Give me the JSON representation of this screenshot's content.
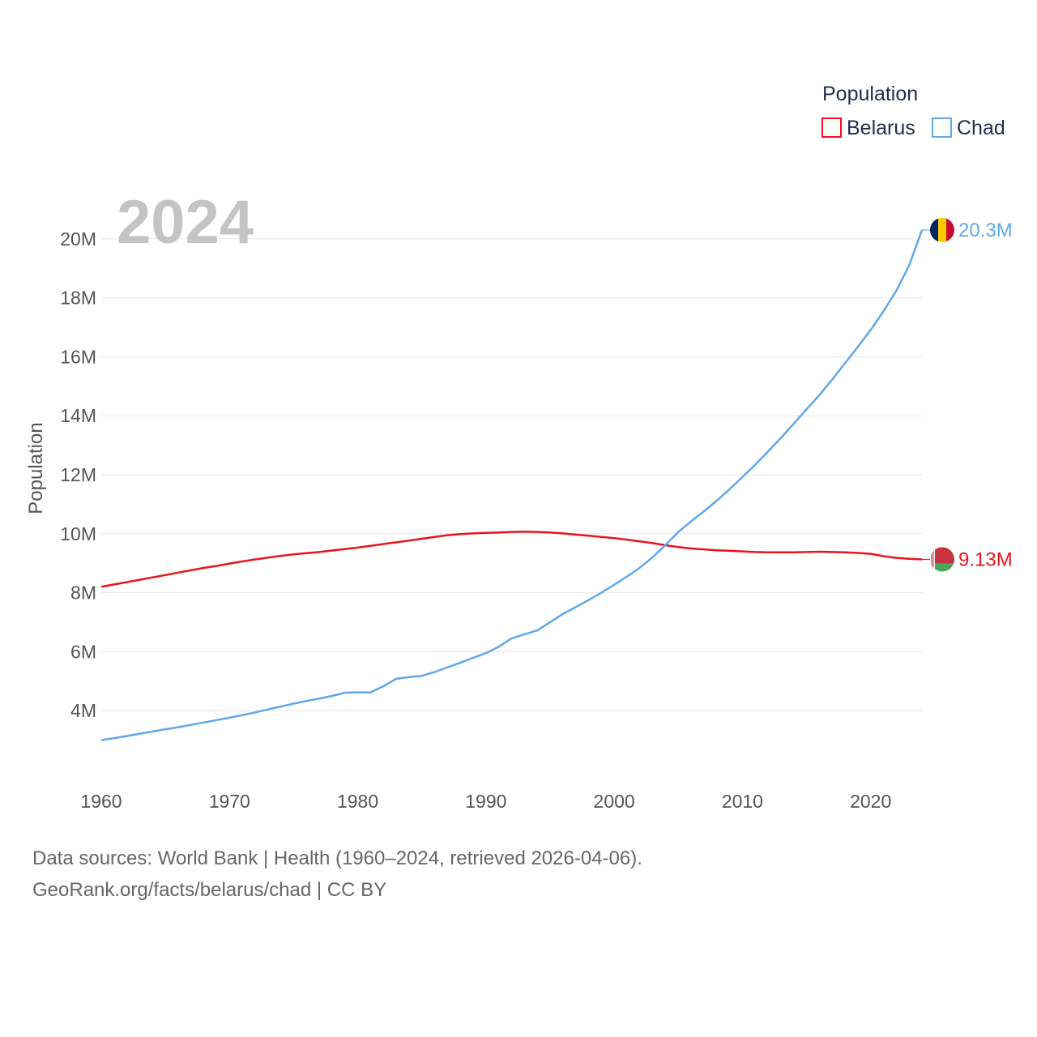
{
  "chart_data": {
    "type": "line",
    "year_label": "2024",
    "legend_title": "Population",
    "ylabel": "Population",
    "xlim": [
      1960,
      2024
    ],
    "ylim": [
      2000000,
      22000000
    ],
    "x_ticks": [
      1960,
      1970,
      1980,
      1990,
      2000,
      2010,
      2020
    ],
    "x_tick_labels": [
      "1960",
      "1970",
      "1980",
      "1990",
      "2000",
      "2010",
      "2020"
    ],
    "y_ticks": [
      4000000,
      6000000,
      8000000,
      10000000,
      12000000,
      14000000,
      16000000,
      18000000,
      20000000
    ],
    "y_tick_labels": [
      "4M",
      "6M",
      "8M",
      "10M",
      "12M",
      "14M",
      "16M",
      "18M",
      "20M"
    ],
    "series": [
      {
        "name": "Belarus",
        "color": "#e8141c",
        "end_label": "9.13M",
        "flag_icon": "belarus-flag-icon",
        "x": [
          1960,
          1961,
          1962,
          1963,
          1964,
          1965,
          1966,
          1967,
          1968,
          1969,
          1970,
          1971,
          1972,
          1973,
          1974,
          1975,
          1976,
          1977,
          1978,
          1979,
          1980,
          1981,
          1982,
          1983,
          1984,
          1985,
          1986,
          1987,
          1988,
          1989,
          1990,
          1991,
          1992,
          1993,
          1994,
          1995,
          1996,
          1997,
          1998,
          1999,
          2000,
          2001,
          2002,
          2003,
          2004,
          2005,
          2006,
          2007,
          2008,
          2009,
          2010,
          2011,
          2012,
          2013,
          2014,
          2015,
          2016,
          2017,
          2018,
          2019,
          2020,
          2021,
          2022,
          2023,
          2024
        ],
        "values": [
          8200000,
          8280000,
          8360000,
          8440000,
          8520000,
          8600000,
          8680000,
          8760000,
          8840000,
          8910000,
          8990000,
          9060000,
          9130000,
          9190000,
          9250000,
          9300000,
          9340000,
          9380000,
          9430000,
          9480000,
          9530000,
          9590000,
          9650000,
          9710000,
          9770000,
          9830000,
          9890000,
          9950000,
          9990000,
          10010000,
          10030000,
          10040000,
          10060000,
          10070000,
          10060000,
          10040000,
          10010000,
          9970000,
          9930000,
          9890000,
          9850000,
          9800000,
          9740000,
          9680000,
          9610000,
          9550000,
          9500000,
          9470000,
          9440000,
          9420000,
          9400000,
          9380000,
          9370000,
          9370000,
          9370000,
          9380000,
          9390000,
          9380000,
          9370000,
          9350000,
          9320000,
          9240000,
          9180000,
          9150000,
          9130000
        ]
      },
      {
        "name": "Chad",
        "color": "#5fa8e8",
        "end_label": "20.3M",
        "flag_icon": "chad-flag-icon",
        "x": [
          1960,
          1961,
          1962,
          1963,
          1964,
          1965,
          1966,
          1967,
          1968,
          1969,
          1970,
          1971,
          1972,
          1973,
          1974,
          1975,
          1976,
          1977,
          1978,
          1979,
          1980,
          1981,
          1982,
          1983,
          1984,
          1985,
          1986,
          1987,
          1988,
          1989,
          1990,
          1991,
          1992,
          1993,
          1994,
          1995,
          1996,
          1997,
          1998,
          1999,
          2000,
          2001,
          2002,
          2003,
          2004,
          2005,
          2006,
          2007,
          2008,
          2009,
          2010,
          2011,
          2012,
          2013,
          2014,
          2015,
          2016,
          2017,
          2018,
          2019,
          2020,
          2021,
          2022,
          2023,
          2024
        ],
        "values": [
          3000000,
          3070000,
          3140000,
          3220000,
          3290000,
          3370000,
          3440000,
          3520000,
          3600000,
          3680000,
          3760000,
          3850000,
          3940000,
          4040000,
          4140000,
          4240000,
          4330000,
          4410000,
          4500000,
          4610000,
          4620000,
          4620000,
          4830000,
          5080000,
          5140000,
          5180000,
          5310000,
          5470000,
          5630000,
          5790000,
          5950000,
          6170000,
          6450000,
          6590000,
          6720000,
          7000000,
          7280000,
          7510000,
          7750000,
          8000000,
          8270000,
          8550000,
          8850000,
          9200000,
          9620000,
          10060000,
          10420000,
          10760000,
          11120000,
          11510000,
          11920000,
          12340000,
          12790000,
          13250000,
          13730000,
          14220000,
          14700000,
          15230000,
          15780000,
          16340000,
          16910000,
          17540000,
          18240000,
          19100000,
          20300000
        ]
      }
    ]
  },
  "footer": {
    "source_line": "Data sources: World Bank | Health (1960–2024, retrieved 2026-04-06).",
    "attribution_line": "GeoRank.org/facts/belarus/chad | CC BY"
  }
}
